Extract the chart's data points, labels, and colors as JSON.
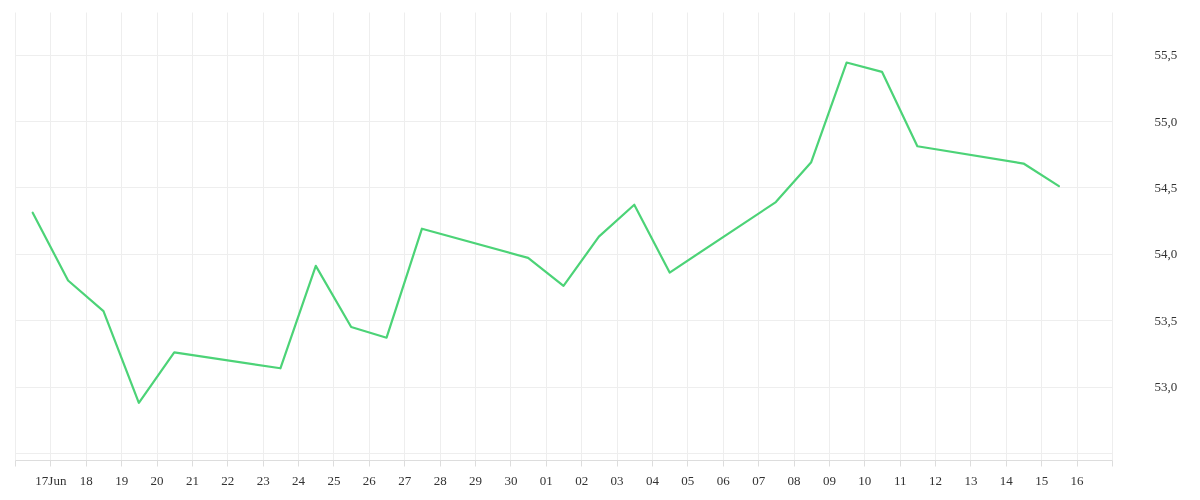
{
  "chart_data": {
    "type": "line",
    "x": [
      "--06-16T12:00",
      "--06-17T12:00",
      "--06-18T12:00",
      "--06-19T12:00",
      "--06-20T12:00",
      "--06-23T12:00",
      "--06-24T12:00",
      "--06-25T12:00",
      "--06-26T12:00",
      "--06-27T12:00",
      "--06-30T12:00",
      "--07-01T12:00",
      "--07-02T12:00",
      "--07-03T12:00",
      "--07-04T12:00",
      "--07-07T12:00",
      "--07-08T12:00",
      "--07-09T12:00",
      "--07-10T12:00",
      "--07-11T12:00",
      "--07-14T12:00",
      "--07-15T12:00"
    ],
    "series": [
      {
        "color": "#4cd377",
        "values": [
          54.31,
          53.8,
          53.57,
          52.88,
          53.26,
          53.14,
          53.91,
          53.45,
          53.37,
          54.19,
          53.97,
          53.76,
          54.13,
          54.37,
          53.86,
          54.39,
          54.69,
          55.44,
          55.37,
          54.81,
          54.68,
          54.51
        ]
      }
    ],
    "xlim": [
      "--06-16",
      "--07-17"
    ],
    "xticks": [
      {
        "value": "--06-16",
        "label": null
      },
      {
        "value": "--06-17",
        "label": "17Jun"
      },
      {
        "value": "--06-18",
        "label": "18"
      },
      {
        "value": "--06-19",
        "label": "19"
      },
      {
        "value": "--06-20",
        "label": "20"
      },
      {
        "value": "--06-21",
        "label": "21"
      },
      {
        "value": "--06-22",
        "label": "22"
      },
      {
        "value": "--06-23",
        "label": "23"
      },
      {
        "value": "--06-24",
        "label": "24"
      },
      {
        "value": "--06-25",
        "label": "25"
      },
      {
        "value": "--06-26",
        "label": "26"
      },
      {
        "value": "--06-27",
        "label": "27"
      },
      {
        "value": "--06-28",
        "label": "28"
      },
      {
        "value": "--06-29",
        "label": "29"
      },
      {
        "value": "--06-30",
        "label": "30"
      },
      {
        "value": "--07-01",
        "label": "01"
      },
      {
        "value": "--07-02",
        "label": "02"
      },
      {
        "value": "--07-03",
        "label": "03"
      },
      {
        "value": "--07-04",
        "label": "04"
      },
      {
        "value": "--07-05",
        "label": "05"
      },
      {
        "value": "--07-06",
        "label": "06"
      },
      {
        "value": "--07-07",
        "label": "07"
      },
      {
        "value": "--07-08",
        "label": "08"
      },
      {
        "value": "--07-09",
        "label": "09"
      },
      {
        "value": "--07-10",
        "label": "10"
      },
      {
        "value": "--07-11",
        "label": "11"
      },
      {
        "value": "--07-12",
        "label": "12"
      },
      {
        "value": "--07-13",
        "label": "13"
      },
      {
        "value": "--07-14",
        "label": "14"
      },
      {
        "value": "--07-15",
        "label": "15"
      },
      {
        "value": "--07-16",
        "label": "16"
      },
      {
        "value": "--07-17",
        "label": null
      }
    ],
    "ylim": [
      52.45,
      55.82
    ],
    "yticks": [
      {
        "value": 52.5,
        "label": null
      },
      {
        "value": 53.0,
        "label": "53,0"
      },
      {
        "value": 53.5,
        "label": "53,5"
      },
      {
        "value": 54.0,
        "label": "54,0"
      },
      {
        "value": 54.5,
        "label": "54,5"
      },
      {
        "value": 55.0,
        "label": "55,0"
      },
      {
        "value": 55.5,
        "label": "55,5"
      }
    ],
    "grid": true
  }
}
